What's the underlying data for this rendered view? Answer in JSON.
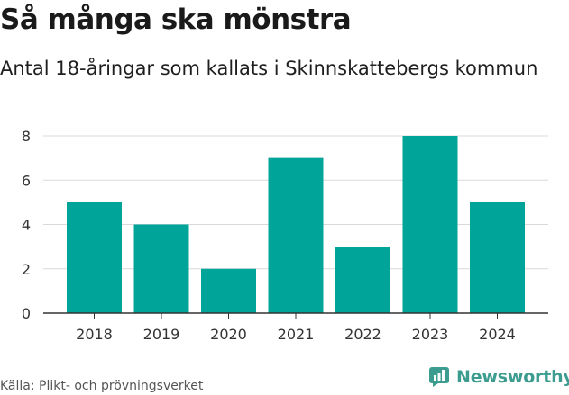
{
  "header": {
    "title": "Så många ska mönstra",
    "subtitle": "Antal 18-åringar som kallats i Skinnskattebergs kommun"
  },
  "footer": {
    "source": "Källa: Plikt- och prövningsverket",
    "brand": "Newsworthy",
    "brand_logo_icon": "newsworthy-logo-icon"
  },
  "colors": {
    "bar": "#00A499",
    "grid": "#d9d9d9",
    "axis": "#333333",
    "brand": "#3b9c8f"
  },
  "chart_data": {
    "type": "bar",
    "title": "Så många ska mönstra",
    "subtitle": "Antal 18-åringar som kallats i Skinnskattebergs kommun",
    "xlabel": "",
    "ylabel": "",
    "categories": [
      "2018",
      "2019",
      "2020",
      "2021",
      "2022",
      "2023",
      "2024"
    ],
    "values": [
      5,
      4,
      2,
      7,
      3,
      8,
      5
    ],
    "ylim": [
      0,
      8
    ],
    "yticks": [
      0,
      2,
      4,
      6,
      8
    ],
    "grid": true,
    "legend": "none"
  }
}
